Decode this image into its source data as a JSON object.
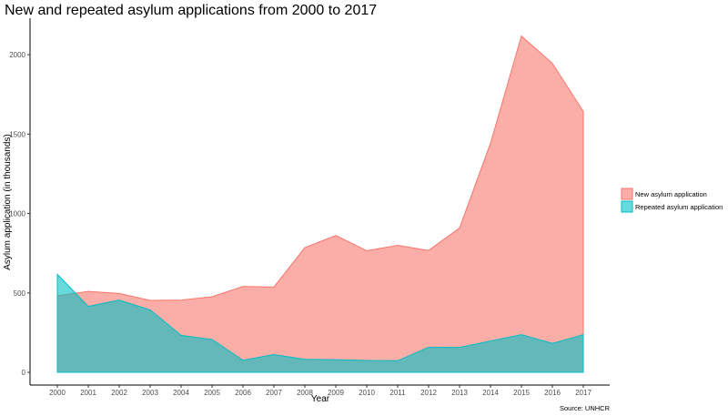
{
  "chart_data": {
    "type": "area",
    "title": "New and repeated asylum applications from 2000 to 2017",
    "xlabel": "Year",
    "ylabel": "Asylum application (in thousands)",
    "caption": "Source: UNHCR",
    "x": [
      "2000",
      "2001",
      "2002",
      "2003",
      "2004",
      "2005",
      "2006",
      "2007",
      "2008",
      "2009",
      "2010",
      "2011",
      "2012",
      "2013",
      "2014",
      "2015",
      "2016",
      "2017"
    ],
    "yticks": [
      0,
      500,
      1000,
      1500,
      2000
    ],
    "ylim": [
      -80,
      2230
    ],
    "grid": false,
    "legend_position": "right",
    "series": [
      {
        "name": "New asylum application",
        "color": "#F8766D",
        "values": [
          482,
          510,
          497,
          453,
          455,
          476,
          541,
          537,
          785,
          862,
          766,
          800,
          768,
          909,
          1442,
          2118,
          1946,
          1643
        ]
      },
      {
        "name": "Repeated asylum application",
        "color": "#00BFC4",
        "values": [
          617,
          415,
          455,
          393,
          233,
          207,
          76,
          112,
          82,
          80,
          75,
          73,
          158,
          157,
          197,
          237,
          182,
          237
        ]
      }
    ]
  }
}
